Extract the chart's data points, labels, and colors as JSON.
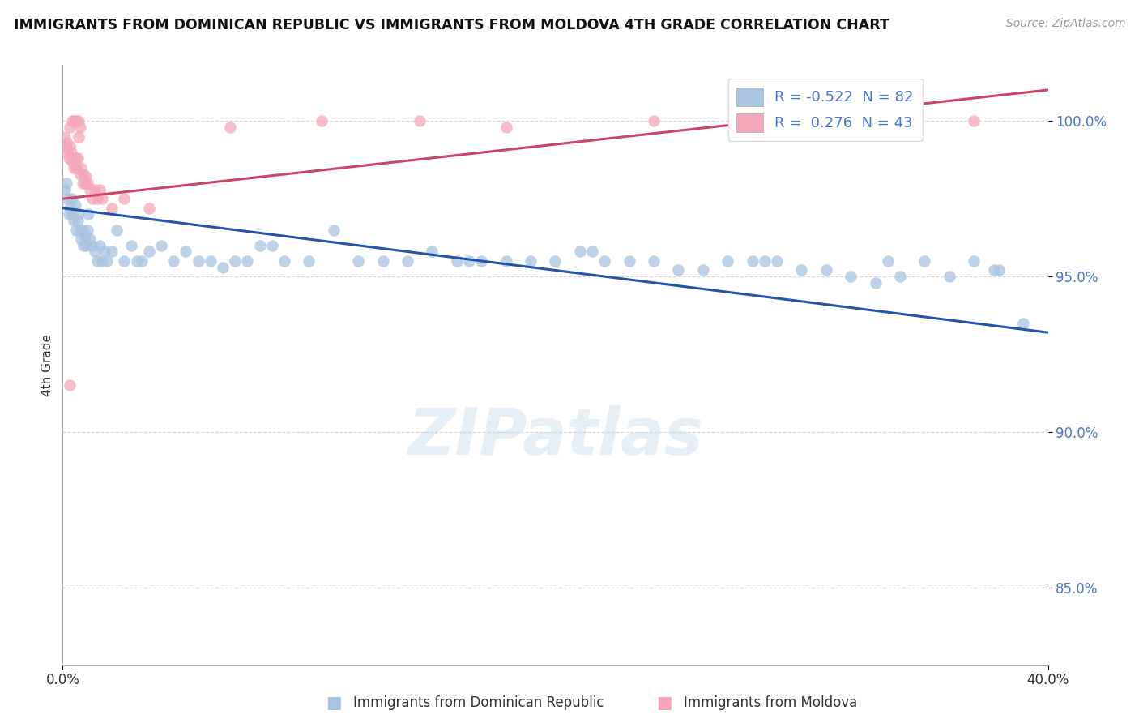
{
  "title": "IMMIGRANTS FROM DOMINICAN REPUBLIC VS IMMIGRANTS FROM MOLDOVA 4TH GRADE CORRELATION CHART",
  "source": "Source: ZipAtlas.com",
  "ylabel": "4th Grade",
  "legend_blue_r": "-0.522",
  "legend_blue_n": "82",
  "legend_pink_r": "0.276",
  "legend_pink_n": "43",
  "legend_blue_label": "Immigrants from Dominican Republic",
  "legend_pink_label": "Immigrants from Moldova",
  "xlim": [
    0.0,
    40.0
  ],
  "ylim": [
    82.5,
    101.8
  ],
  "yticks": [
    85.0,
    90.0,
    95.0,
    100.0
  ],
  "ytick_labels": [
    "85.0%",
    "90.0%",
    "95.0%",
    "100.0%"
  ],
  "xticks": [
    0.0,
    40.0
  ],
  "xtick_labels": [
    "0.0%",
    "40.0%"
  ],
  "blue_color": "#a8c4e0",
  "pink_color": "#f4a7b9",
  "blue_line_color": "#2255aa",
  "pink_line_color": "#cc4466",
  "watermark_text": "ZIPatlas",
  "blue_scatter_x": [
    0.1,
    0.15,
    0.2,
    0.25,
    0.3,
    0.35,
    0.4,
    0.45,
    0.5,
    0.55,
    0.6,
    0.65,
    0.7,
    0.75,
    0.8,
    0.85,
    0.9,
    0.95,
    1.0,
    1.1,
    1.2,
    1.3,
    1.4,
    1.5,
    1.6,
    1.7,
    1.8,
    2.0,
    2.2,
    2.5,
    3.0,
    3.5,
    4.0,
    4.5,
    5.0,
    5.5,
    6.0,
    6.5,
    7.0,
    7.5,
    8.0,
    9.0,
    10.0,
    11.0,
    12.0,
    13.0,
    14.0,
    15.0,
    16.0,
    17.0,
    18.0,
    19.0,
    20.0,
    21.0,
    22.0,
    23.0,
    24.0,
    25.0,
    26.0,
    27.0,
    28.0,
    29.0,
    30.0,
    31.0,
    32.0,
    33.0,
    34.0,
    35.0,
    36.0,
    37.0,
    38.0,
    39.0,
    2.8,
    3.2,
    8.5,
    16.5,
    21.5,
    28.5,
    33.5,
    37.8,
    1.05,
    0.55
  ],
  "blue_scatter_y": [
    97.8,
    98.0,
    97.5,
    97.0,
    97.2,
    97.5,
    97.0,
    96.8,
    97.3,
    96.5,
    96.8,
    97.0,
    96.5,
    96.2,
    96.5,
    96.0,
    96.3,
    96.0,
    96.5,
    96.2,
    96.0,
    95.8,
    95.5,
    96.0,
    95.5,
    95.8,
    95.5,
    95.8,
    96.5,
    95.5,
    95.5,
    95.8,
    96.0,
    95.5,
    95.8,
    95.5,
    95.5,
    95.3,
    95.5,
    95.5,
    96.0,
    95.5,
    95.5,
    96.5,
    95.5,
    95.5,
    95.5,
    95.8,
    95.5,
    95.5,
    95.5,
    95.5,
    95.5,
    95.8,
    95.5,
    95.5,
    95.5,
    95.2,
    95.2,
    95.5,
    95.5,
    95.5,
    95.2,
    95.2,
    95.0,
    94.8,
    95.0,
    95.5,
    95.0,
    95.5,
    95.2,
    93.5,
    96.0,
    95.5,
    96.0,
    95.5,
    95.8,
    95.5,
    95.5,
    95.2,
    97.0,
    98.5
  ],
  "pink_scatter_x": [
    0.05,
    0.1,
    0.15,
    0.2,
    0.25,
    0.3,
    0.35,
    0.4,
    0.45,
    0.5,
    0.55,
    0.6,
    0.65,
    0.7,
    0.75,
    0.8,
    0.85,
    0.9,
    0.95,
    1.0,
    1.1,
    1.2,
    1.3,
    1.4,
    1.5,
    0.28,
    0.38,
    0.48,
    0.55,
    0.65,
    0.72,
    1.6,
    2.0,
    2.5,
    3.5,
    6.8,
    10.5,
    14.5,
    18.0,
    24.0,
    31.0,
    37.0,
    0.3
  ],
  "pink_scatter_y": [
    99.2,
    99.5,
    99.3,
    99.0,
    98.8,
    99.2,
    99.0,
    98.7,
    98.5,
    98.8,
    98.5,
    98.8,
    99.5,
    98.3,
    98.5,
    98.0,
    98.3,
    98.0,
    98.2,
    98.0,
    97.8,
    97.5,
    97.8,
    97.5,
    97.8,
    99.8,
    100.0,
    100.0,
    100.0,
    100.0,
    99.8,
    97.5,
    97.2,
    97.5,
    97.2,
    99.8,
    100.0,
    100.0,
    99.8,
    100.0,
    100.0,
    100.0,
    91.5
  ]
}
